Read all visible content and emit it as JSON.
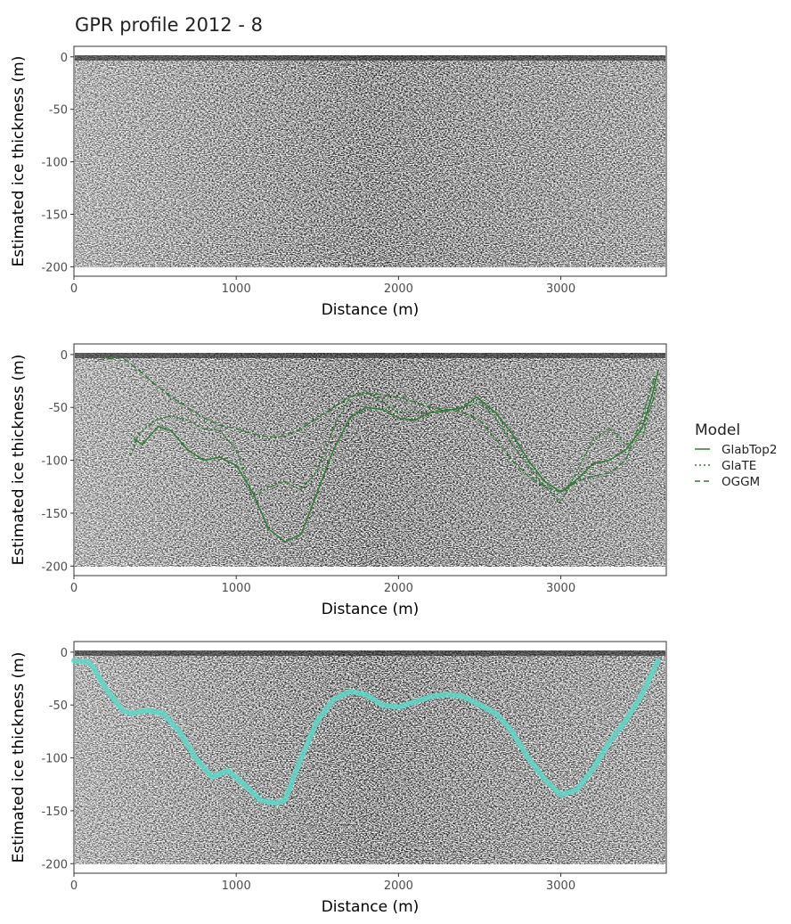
{
  "chart_data": [
    {
      "type": "line",
      "title": "GPR profile 2012 - 8",
      "xlabel": "Distance (m)",
      "ylabel": "Estimated ice thickness (m)",
      "xlim": [
        0,
        3650
      ],
      "xticks": [
        0,
        1000,
        2000,
        3000
      ],
      "ylim": [
        -209,
        10
      ],
      "yticks": [
        -200,
        -150,
        -100,
        -50,
        0
      ],
      "series": []
    },
    {
      "type": "line",
      "xlabel": "Distance (m)",
      "ylabel": "Estimated ice thickness (m)",
      "xlim": [
        0,
        3650
      ],
      "xticks": [
        0,
        1000,
        2000,
        3000
      ],
      "ylim": [
        -209,
        10
      ],
      "yticks": [
        -200,
        -150,
        -100,
        -50,
        0
      ],
      "legend_title": "Model",
      "legend": "right",
      "series": [
        {
          "name": "GlabTop2",
          "color": "#2e7d32",
          "linestyle": "solid",
          "x": [
            370,
            420,
            520,
            600,
            700,
            800,
            900,
            1000,
            1100,
            1200,
            1300,
            1400,
            1500,
            1600,
            1700,
            1800,
            1900,
            2000,
            2100,
            2200,
            2300,
            2400,
            2480,
            2600,
            2700,
            2800,
            2900,
            3000,
            3100,
            3200,
            3300,
            3400,
            3500,
            3560,
            3600
          ],
          "values": [
            -80,
            -85,
            -68,
            -72,
            -90,
            -100,
            -97,
            -105,
            -130,
            -165,
            -177,
            -170,
            -130,
            -90,
            -60,
            -50,
            -52,
            -60,
            -62,
            -55,
            -53,
            -50,
            -40,
            -55,
            -75,
            -100,
            -120,
            -130,
            -118,
            -103,
            -100,
            -90,
            -70,
            -40,
            -15
          ]
        },
        {
          "name": "GlaTE",
          "color": "#2e7d32",
          "linestyle": "dotted",
          "x": [
            350,
            400,
            500,
            600,
            700,
            800,
            900,
            1000,
            1100,
            1200,
            1300,
            1400,
            1500,
            1600,
            1700,
            1800,
            1900,
            2000,
            2100,
            2200,
            2400,
            2500,
            2600,
            2700,
            2800,
            2900,
            3000,
            3100,
            3200,
            3300,
            3400,
            3500,
            3600
          ],
          "values": [
            -95,
            -75,
            -62,
            -58,
            -62,
            -70,
            -72,
            -90,
            -135,
            -125,
            -120,
            -128,
            -110,
            -70,
            -40,
            -35,
            -45,
            -55,
            -55,
            -55,
            -50,
            -45,
            -60,
            -85,
            -105,
            -125,
            -140,
            -110,
            -80,
            -70,
            -85,
            -80,
            -25
          ]
        },
        {
          "name": "OGGM",
          "color": "#2e7d32",
          "linestyle": "dashed",
          "x": [
            150,
            300,
            400,
            500,
            600,
            700,
            800,
            900,
            1000,
            1100,
            1200,
            1300,
            1400,
            1500,
            1600,
            1700,
            1800,
            1900,
            2000,
            2100,
            2200,
            2300,
            2400,
            2500,
            2600,
            2700,
            2800,
            2900,
            3000,
            3100,
            3200,
            3300,
            3400,
            3500,
            3580
          ],
          "values": [
            -5,
            -3,
            -15,
            -28,
            -40,
            -50,
            -60,
            -67,
            -70,
            -75,
            -78,
            -77,
            -70,
            -60,
            -50,
            -40,
            -37,
            -38,
            -40,
            -45,
            -50,
            -52,
            -55,
            -62,
            -80,
            -100,
            -115,
            -125,
            -130,
            -120,
            -115,
            -112,
            -100,
            -60,
            -20
          ]
        }
      ]
    },
    {
      "type": "line",
      "xlabel": "Distance (m)",
      "ylabel": "Estimated ice thickness (m)",
      "xlim": [
        0,
        3650
      ],
      "xticks": [
        0,
        1000,
        2000,
        3000
      ],
      "ylim": [
        -209,
        10
      ],
      "yticks": [
        -200,
        -150,
        -100,
        -50,
        0
      ],
      "series": [
        {
          "color": "#5ed8c8",
          "linestyle": "thick",
          "x": [
            0,
            100,
            200,
            300,
            350,
            450,
            550,
            650,
            750,
            850,
            950,
            1050,
            1150,
            1250,
            1300,
            1400,
            1500,
            1600,
            1700,
            1800,
            1900,
            2000,
            2100,
            2200,
            2300,
            2400,
            2500,
            2600,
            2700,
            2800,
            2900,
            3000,
            3100,
            3200,
            3300,
            3400,
            3500,
            3600
          ],
          "values": [
            -8,
            -10,
            -35,
            -55,
            -58,
            -55,
            -58,
            -75,
            -100,
            -118,
            -112,
            -125,
            -140,
            -143,
            -140,
            -100,
            -65,
            -45,
            -37,
            -40,
            -50,
            -52,
            -47,
            -42,
            -40,
            -42,
            -50,
            -58,
            -75,
            -100,
            -120,
            -135,
            -130,
            -110,
            -85,
            -65,
            -40,
            -8
          ]
        }
      ]
    }
  ]
}
